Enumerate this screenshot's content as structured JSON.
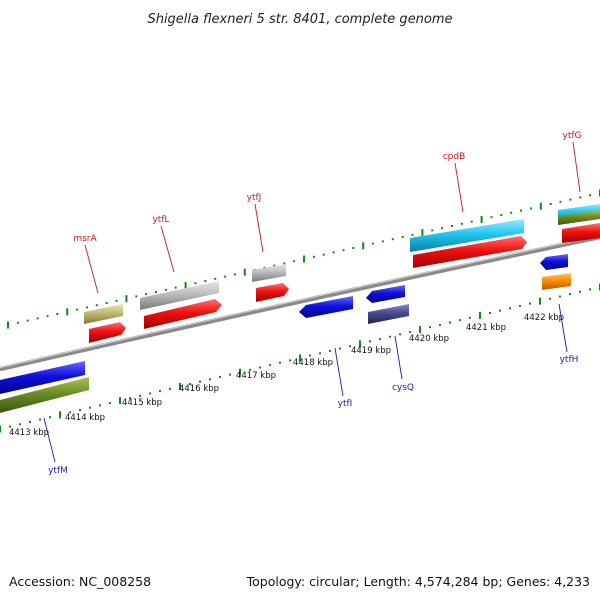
{
  "title": "Shigella flexneri 5 str. 8401, complete genome",
  "footer": {
    "accession": "Accession: NC_008258",
    "summary": "Topology: circular; Length: 4,574,284 bp; Genes: 4,233"
  },
  "scale_labels": [
    "4413 kbp",
    "4414 kbp",
    "4415 kbp",
    "4416 kbp",
    "4417 kbp",
    "4418 kbp",
    "4419 kbp",
    "4420 kbp",
    "4421 kbp",
    "4422 kbp"
  ],
  "genes_top": [
    {
      "name": "msrA",
      "color": "#d0141a"
    },
    {
      "name": "ytfL",
      "color": "#d0141a"
    },
    {
      "name": "ytfJ",
      "color": "#d0141a"
    },
    {
      "name": "cpdB",
      "color": "#d0141a"
    },
    {
      "name": "ytfG",
      "color": "#d0141a"
    }
  ],
  "genes_bottom": [
    {
      "name": "ytfM",
      "color": "#1a1ab4"
    },
    {
      "name": "ytfI",
      "color": "#1a1ab4"
    },
    {
      "name": "cysQ",
      "color": "#1a1ab4"
    },
    {
      "name": "ytfH",
      "color": "#1a1ab4"
    }
  ],
  "feature_colors": {
    "forward_cds": "#ee1111",
    "reverse_cds": "#1111dd",
    "gray_feature": "#bcbcbc",
    "olive_feature": "#c0bd72",
    "cyan_feature": "#22c8f0",
    "green_feature": "#6b8e23",
    "purple_feature": "#4a4a90",
    "orange_feature": "#ff8c00",
    "backbone": "#8a8a8a",
    "tick": "#138a13"
  }
}
